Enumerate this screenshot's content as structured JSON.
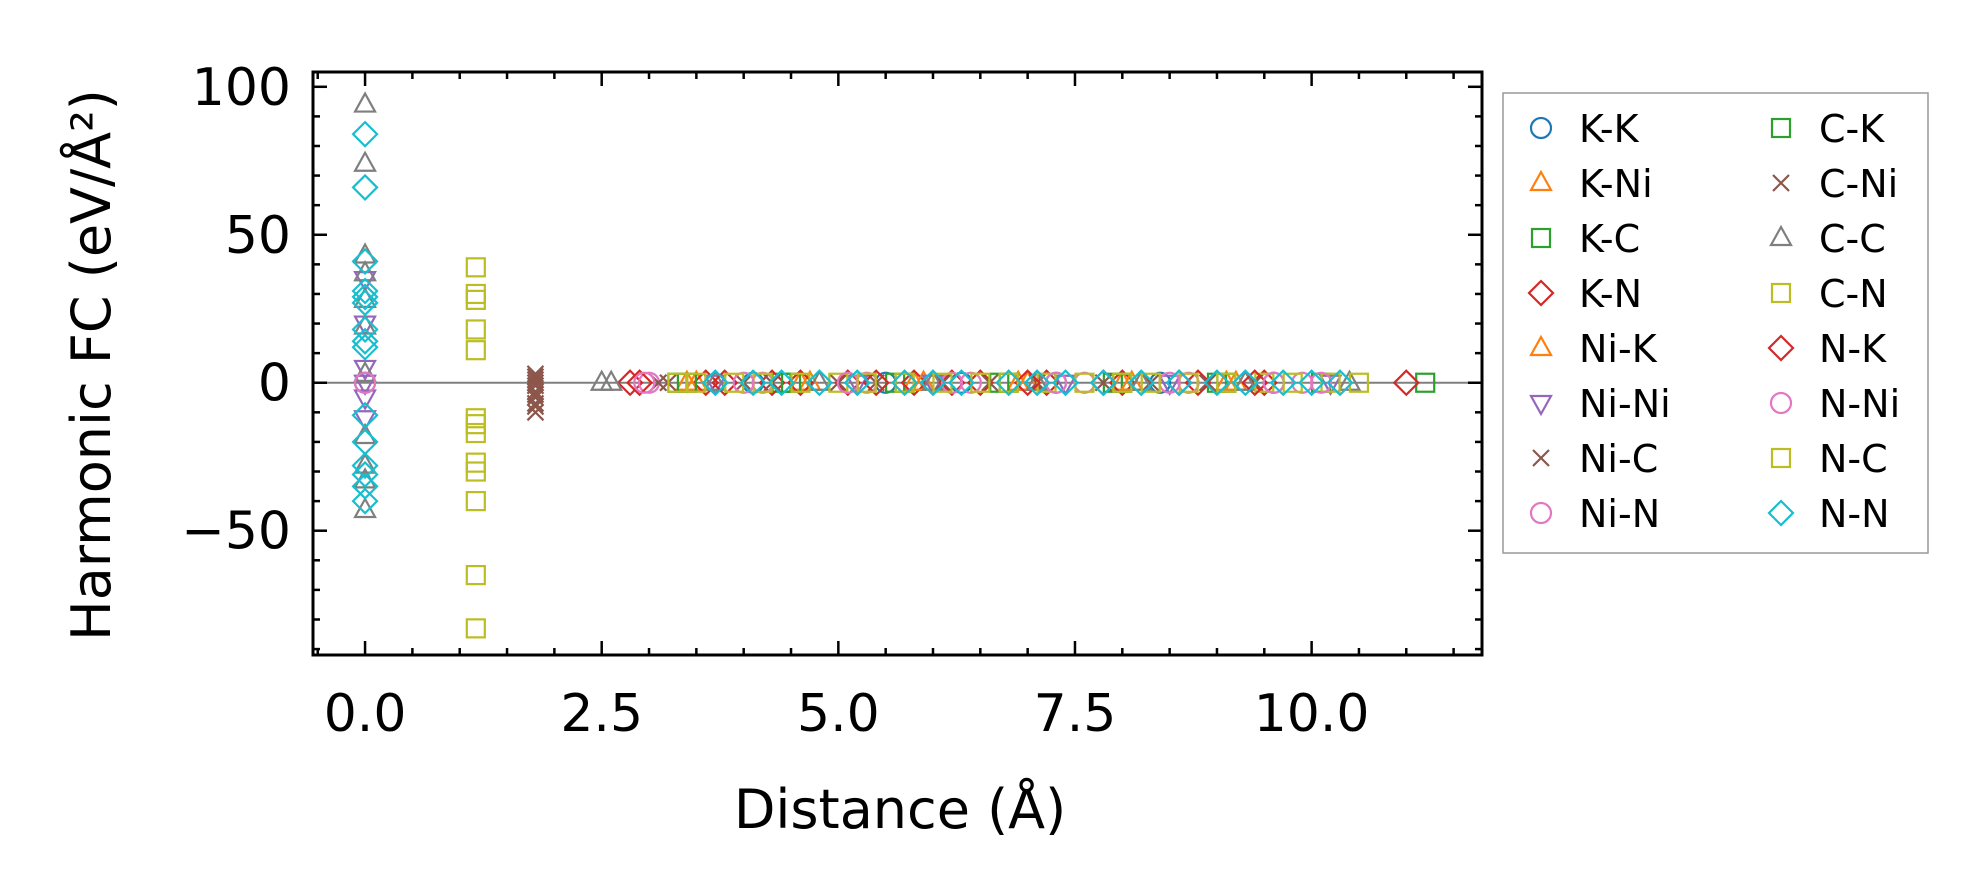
{
  "chart_data": {
    "type": "scatter",
    "title": "",
    "xlabel": "Distance (Å)",
    "ylabel": "Harmonic FC (eV/Å²)",
    "xlim": [
      -0.55,
      11.8
    ],
    "ylim": [
      -92,
      105
    ],
    "xticks": [
      0.0,
      2.5,
      5.0,
      7.5,
      10.0
    ],
    "xtick_labels": [
      "0.0",
      "2.5",
      "5.0",
      "7.5",
      "10.0"
    ],
    "yticks": [
      -50,
      0,
      50,
      100
    ],
    "ytick_labels": [
      "−50",
      "0",
      "50",
      "100"
    ],
    "zero_line": true,
    "grid": false,
    "legend_position": "outside-right",
    "legend_columns": 2,
    "series": [
      {
        "name": "K-K",
        "marker": "circle",
        "color": "#1f77b4",
        "x": [
          0.0,
          4.1,
          5.5,
          6.3,
          7.3,
          8.4,
          9.6
        ],
        "y": [
          0,
          0,
          0,
          0,
          0,
          0,
          0
        ]
      },
      {
        "name": "K-Ni",
        "marker": "triangle-up",
        "color": "#ff7f0e",
        "x": [
          3.5,
          4.6,
          5.8,
          6.9,
          8.0,
          9.1
        ],
        "y": [
          0,
          0,
          0,
          0,
          0,
          0
        ]
      },
      {
        "name": "K-C",
        "marker": "square",
        "color": "#2ca02c",
        "x": [
          3.3,
          4.4,
          5.6,
          6.7,
          7.9,
          9.0,
          10.1
        ],
        "y": [
          0,
          0,
          0,
          0,
          0,
          0,
          0
        ]
      },
      {
        "name": "K-N",
        "marker": "diamond",
        "color": "#d62728",
        "x": [
          2.8,
          3.6,
          4.3,
          5.1,
          5.8,
          6.5,
          7.2,
          8.0,
          8.8,
          9.5
        ],
        "y": [
          0,
          0,
          0,
          0,
          0,
          0,
          0,
          0,
          0,
          0
        ]
      },
      {
        "name": "Ni-K",
        "marker": "triangle-up",
        "color": "#ff7f0e",
        "x": [
          3.4,
          4.7,
          5.9,
          7.0,
          8.1,
          9.2
        ],
        "y": [
          0,
          0,
          0,
          0,
          0,
          0
        ]
      },
      {
        "name": "Ni-Ni",
        "marker": "triangle-down",
        "color": "#9467bd",
        "x": [
          0.0,
          0.0,
          0.0,
          0.0,
          0.0,
          0.0,
          3.7,
          5.2,
          6.0,
          7.4,
          8.5,
          10.2
        ],
        "y": [
          35,
          20,
          5,
          0,
          -5,
          -12,
          0,
          0,
          0,
          0,
          0,
          0
        ]
      },
      {
        "name": "Ni-C",
        "marker": "x",
        "color": "#8c564b",
        "x": [
          1.8,
          1.8,
          1.8,
          1.8,
          1.8,
          1.8,
          1.8,
          3.2,
          4.0,
          5.0,
          6.1,
          7.1,
          8.3,
          9.4
        ],
        "y": [
          3,
          1,
          -1,
          -3,
          -5,
          -7,
          -10,
          0,
          0,
          0,
          0,
          0,
          0,
          0
        ]
      },
      {
        "name": "Ni-N",
        "marker": "circle",
        "color": "#e377c2",
        "x": [
          3.0,
          4.2,
          5.3,
          6.4,
          7.6,
          8.7,
          9.9
        ],
        "y": [
          0,
          0,
          0,
          0,
          0,
          0,
          0
        ]
      },
      {
        "name": "C-K",
        "marker": "square",
        "color": "#2ca02c",
        "x": [
          3.4,
          4.5,
          5.7,
          6.8,
          8.0,
          9.1,
          11.2
        ],
        "y": [
          0,
          0,
          0,
          0,
          0,
          0,
          0
        ]
      },
      {
        "name": "C-Ni",
        "marker": "x",
        "color": "#8c564b",
        "x": [
          1.8,
          1.8,
          1.8,
          1.8,
          3.1,
          4.3,
          5.4,
          6.6,
          7.8,
          8.9
        ],
        "y": [
          2,
          0,
          -4,
          -8,
          0,
          0,
          0,
          0,
          0,
          0
        ]
      },
      {
        "name": "C-C",
        "marker": "triangle-up",
        "color": "#7f7f7f",
        "x": [
          0.0,
          0.0,
          0.0,
          0.0,
          0.0,
          0.0,
          0.0,
          0.0,
          0.0,
          0.0,
          0.0,
          2.5,
          2.6,
          3.7,
          4.8,
          6.0,
          7.1,
          8.2,
          9.3,
          10.4
        ],
        "y": [
          94,
          74,
          43,
          37,
          28,
          19,
          3,
          -18,
          -28,
          -33,
          -43,
          0,
          0,
          0,
          0,
          0,
          0,
          0,
          0,
          0
        ]
      },
      {
        "name": "C-N",
        "marker": "square",
        "color": "#bcbd22",
        "x": [
          1.17,
          1.17,
          1.17,
          1.17,
          1.17,
          1.17,
          1.17,
          1.17,
          1.17,
          1.17,
          1.17,
          1.17,
          1.17,
          3.5,
          4.2,
          5.0,
          5.7,
          6.5,
          7.2,
          8.0,
          8.7,
          9.5,
          10.2
        ],
        "y": [
          39,
          30,
          28,
          18,
          11,
          -12,
          -14,
          -17,
          -27,
          -30,
          -40,
          -65,
          -83,
          0,
          0,
          0,
          0,
          0,
          0,
          0,
          0,
          0,
          0
        ]
      },
      {
        "name": "N-K",
        "marker": "diamond",
        "color": "#d62728",
        "x": [
          2.9,
          3.8,
          4.6,
          5.4,
          6.2,
          7.0,
          7.8,
          8.6,
          9.4,
          11.0
        ],
        "y": [
          0,
          0,
          0,
          0,
          0,
          0,
          0,
          0,
          0,
          0
        ]
      },
      {
        "name": "N-Ni",
        "marker": "circle",
        "color": "#e377c2",
        "x": [
          0.0,
          2.95,
          4.0,
          5.1,
          6.2,
          7.3,
          8.5,
          9.6,
          10.1
        ],
        "y": [
          0,
          0,
          0,
          0,
          0,
          0,
          0,
          0,
          0
        ]
      },
      {
        "name": "N-C",
        "marker": "square",
        "color": "#bcbd22",
        "x": [
          3.3,
          3.9,
          4.6,
          5.3,
          6.1,
          6.8,
          7.6,
          8.3,
          9.1,
          9.8,
          10.5
        ],
        "y": [
          0,
          0,
          0,
          0,
          0,
          0,
          0,
          0,
          0,
          0,
          0
        ]
      },
      {
        "name": "N-N",
        "marker": "diamond",
        "color": "#17becf",
        "x": [
          0.0,
          0.0,
          0.0,
          0.0,
          0.0,
          0.0,
          0.0,
          0.0,
          0.0,
          0.0,
          0.0,
          0.0,
          0.0,
          0.0,
          0.0,
          3.7,
          4.1,
          4.4,
          4.8,
          5.2,
          5.7,
          6.0,
          6.3,
          6.8,
          7.1,
          7.4,
          7.8,
          8.2,
          8.6,
          9.0,
          9.3,
          9.7,
          10.0,
          10.3
        ],
        "y": [
          84,
          66,
          41,
          31,
          29,
          27,
          18,
          14,
          12,
          -11,
          -20,
          -28,
          -31,
          -35,
          -40,
          0,
          0,
          0,
          0,
          0,
          0,
          0,
          0,
          0,
          0,
          0,
          0,
          0,
          0,
          0,
          0,
          0,
          0,
          0
        ]
      }
    ]
  }
}
